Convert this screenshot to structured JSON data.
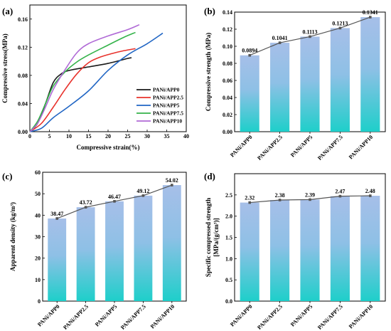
{
  "chart_data": [
    {
      "panel": "(a)",
      "type": "line",
      "xlabel": "Compressive strain(%)",
      "ylabel": "Compressive stress(MPa)",
      "xlim": [
        0,
        40
      ],
      "ylim": [
        0,
        0.18
      ],
      "xticks": [
        "0",
        "5",
        "10",
        "15",
        "20",
        "25",
        "30",
        "35",
        "40"
      ],
      "yticks": [
        "0.00",
        "0.04",
        "0.08",
        "0.12",
        "0.16"
      ],
      "legend_position": "right",
      "series": [
        {
          "name": "PANi/APP0",
          "color": "#1a1a1a",
          "points": [
            [
              0,
              0
            ],
            [
              2,
              0.012
            ],
            [
              4,
              0.04
            ],
            [
              6,
              0.07
            ],
            [
              8,
              0.082
            ],
            [
              10,
              0.087
            ],
            [
              15,
              0.092
            ],
            [
              20,
              0.097
            ],
            [
              25,
              0.104
            ],
            [
              26,
              0.105
            ]
          ]
        },
        {
          "name": "PANi/APP2.5",
          "color": "#e8322c",
          "points": [
            [
              0,
              0
            ],
            [
              3,
              0.012
            ],
            [
              6,
              0.035
            ],
            [
              9,
              0.06
            ],
            [
              12,
              0.082
            ],
            [
              15,
              0.098
            ],
            [
              18,
              0.106
            ],
            [
              21,
              0.111
            ],
            [
              24,
              0.115
            ],
            [
              27,
              0.118
            ]
          ]
        },
        {
          "name": "PANi/APP5",
          "color": "#2166c4",
          "points": [
            [
              0,
              0
            ],
            [
              3,
              0.005
            ],
            [
              6,
              0.02
            ],
            [
              10,
              0.036
            ],
            [
              15,
              0.058
            ],
            [
              20,
              0.087
            ],
            [
              25,
              0.109
            ],
            [
              30,
              0.125
            ],
            [
              34,
              0.14
            ]
          ]
        },
        {
          "name": "PANi/APP7.5",
          "color": "#34b34a",
          "points": [
            [
              0,
              0
            ],
            [
              2,
              0.015
            ],
            [
              4,
              0.04
            ],
            [
              6,
              0.065
            ],
            [
              9,
              0.085
            ],
            [
              12,
              0.099
            ],
            [
              15,
              0.109
            ],
            [
              20,
              0.123
            ],
            [
              24,
              0.134
            ],
            [
              27,
              0.141
            ]
          ]
        },
        {
          "name": "PANi/APP10",
          "color": "#b06ad6",
          "points": [
            [
              0,
              0
            ],
            [
              2,
              0.012
            ],
            [
              4,
              0.035
            ],
            [
              6,
              0.06
            ],
            [
              9,
              0.088
            ],
            [
              12,
              0.112
            ],
            [
              15,
              0.125
            ],
            [
              20,
              0.136
            ],
            [
              25,
              0.145
            ],
            [
              28,
              0.152
            ]
          ]
        }
      ]
    },
    {
      "panel": "(b)",
      "type": "bar",
      "ylabel": "Compressive strength (MPa)",
      "ylim": [
        0,
        0.14
      ],
      "yticks": [
        "0.00",
        "0.02",
        "0.04",
        "0.06",
        "0.08",
        "0.10",
        "0.12",
        "0.14"
      ],
      "categories": [
        "PANi/APP0",
        "PANi/APP2.5",
        "PANi/APP5",
        "PANi/APP7.5",
        "PANi/APP10"
      ],
      "values": [
        0.0894,
        0.1041,
        0.1113,
        0.1213,
        0.1341
      ],
      "value_labels": [
        "0.0894",
        "0.1041",
        "0.1113",
        "0.1213",
        "0.1341"
      ]
    },
    {
      "panel": "(c)",
      "type": "bar",
      "ylabel": "Apparent density (kg/m³)",
      "ylim": [
        0,
        60
      ],
      "yticks": [
        "0",
        "10",
        "20",
        "30",
        "40",
        "50",
        "60"
      ],
      "categories": [
        "PANi/APP0",
        "PANi/APP2.5",
        "PANi/APP5",
        "PANi/APP7.5",
        "PANi/APP10"
      ],
      "values": [
        38.47,
        43.72,
        46.47,
        49.12,
        54.02
      ],
      "value_labels": [
        "38.47",
        "43.72",
        "46.47",
        "49.12",
        "54.02"
      ]
    },
    {
      "panel": "(d)",
      "type": "bar",
      "ylabel": "Specific compressed strength",
      "ylabel2": "[MPa/(g/cm³)]",
      "ylim": [
        0,
        3.0
      ],
      "yticks": [
        "0.0",
        "0.5",
        "1.0",
        "1.5",
        "2.0",
        "2.5"
      ],
      "categories": [
        "PANi/APP0",
        "PANi/APP2.5",
        "PANi/APP5",
        "PANi/APP7.5",
        "PANi/APP10"
      ],
      "values": [
        2.32,
        2.38,
        2.39,
        2.47,
        2.48
      ],
      "value_labels": [
        "2.32",
        "2.38",
        "2.39",
        "2.47",
        "2.48"
      ]
    }
  ]
}
